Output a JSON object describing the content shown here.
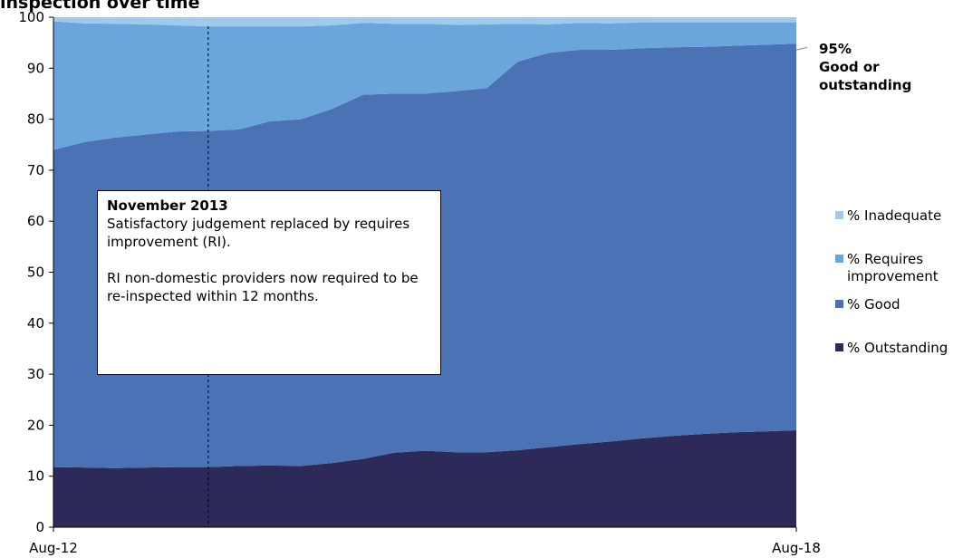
{
  "chart_data": {
    "type": "area",
    "stacked": true,
    "title": "inspection over time",
    "x": [
      "Aug-12",
      "Nov-12",
      "Feb-13",
      "May-13",
      "Aug-13",
      "Nov-13",
      "Feb-14",
      "May-14",
      "Aug-14",
      "Nov-14",
      "Feb-15",
      "May-15",
      "Aug-15",
      "Nov-15",
      "Feb-16",
      "May-16",
      "Aug-16",
      "Nov-16",
      "Feb-17",
      "May-17",
      "Aug-17",
      "Nov-17",
      "Feb-18",
      "May-18",
      "Aug-18"
    ],
    "x_tick_labels": [
      "Aug-12",
      "Aug-18"
    ],
    "ylim": [
      0,
      100
    ],
    "y_ticks": [
      0,
      10,
      20,
      30,
      40,
      50,
      60,
      70,
      80,
      90,
      100
    ],
    "series": [
      {
        "name": "% Outstanding",
        "color": "#2d2a5a",
        "values": [
          11.8,
          11.7,
          11.6,
          11.7,
          11.8,
          11.8,
          12.0,
          12.1,
          12.0,
          12.6,
          13.4,
          14.6,
          15.0,
          14.7,
          14.7,
          15.1,
          15.7,
          16.3,
          16.8,
          17.4,
          17.9,
          18.3,
          18.6,
          18.8,
          19.0
        ]
      },
      {
        "name": "% Good",
        "color": "#4a72b5",
        "values": [
          62.2,
          63.8,
          64.8,
          65.3,
          65.8,
          65.9,
          66.0,
          67.5,
          68.0,
          69.4,
          71.4,
          70.4,
          70.0,
          70.8,
          71.4,
          76.2,
          77.3,
          77.3,
          76.8,
          76.5,
          76.2,
          75.9,
          75.8,
          75.8,
          75.8
        ]
      },
      {
        "name": "% Requires improvement",
        "color": "#6aa5dc",
        "values": [
          25.2,
          23.3,
          22.3,
          21.6,
          20.8,
          20.5,
          20.2,
          18.6,
          18.2,
          16.4,
          14.1,
          13.7,
          13.7,
          13.0,
          12.5,
          7.4,
          5.6,
          5.3,
          5.2,
          5.1,
          4.9,
          4.8,
          4.6,
          4.4,
          4.2
        ]
      },
      {
        "name": "% Inadequate",
        "color": "#9fcaed",
        "values": [
          0.8,
          1.2,
          1.3,
          1.4,
          1.6,
          1.8,
          1.8,
          1.8,
          1.8,
          1.6,
          1.1,
          1.3,
          1.3,
          1.5,
          1.4,
          1.3,
          1.4,
          1.1,
          1.2,
          1.0,
          1.0,
          1.0,
          1.0,
          1.0,
          1.0
        ]
      }
    ],
    "marker": {
      "x": "Nov-13",
      "style": "dashed"
    },
    "callout": {
      "value": "95%",
      "text": "Good or outstanding"
    },
    "annotation": {
      "title": "November 2013",
      "text": "Satisfactory judgement replaced by requires improvement (RI).\n\nRI non-domestic providers now required to be re-inspected within 12 months."
    },
    "legend": {
      "placement": "right",
      "entries": [
        "% Inadequate",
        "% Requires improvement",
        "% Good",
        "% Outstanding"
      ]
    }
  }
}
